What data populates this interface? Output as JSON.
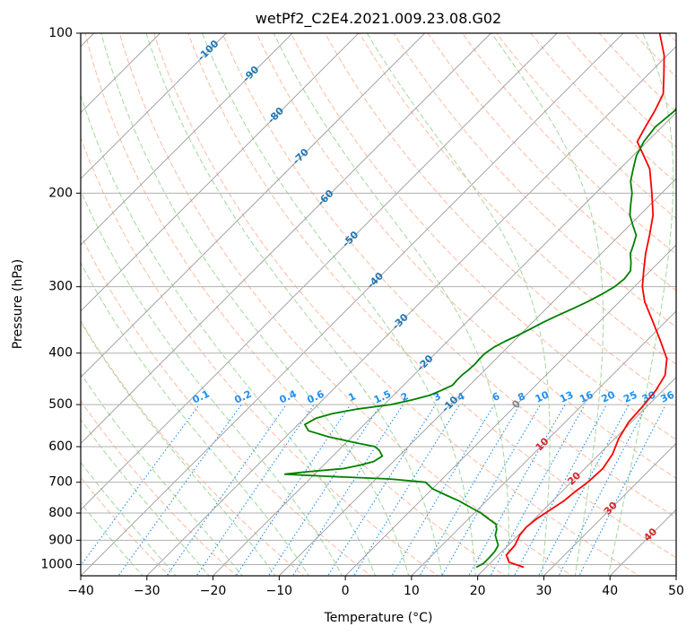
{
  "chart_data": {
    "type": "line",
    "subtype": "skew-t log-p diagram",
    "title": "wetPf2_C2E4.2021.009.23.08.G02",
    "xlabel": "Temperature (°C)",
    "ylabel": "Pressure (hPa)",
    "xlim": [
      -40,
      50
    ],
    "ylim_pressure": [
      1050,
      100
    ],
    "x_ticks": [
      -40,
      -30,
      -20,
      -10,
      0,
      10,
      20,
      30,
      40,
      50
    ],
    "x_tick_labels": [
      "−40",
      "−30",
      "−20",
      "−10",
      "0",
      "10",
      "20",
      "30",
      "40",
      "50"
    ],
    "y_ticks": [
      1000,
      900,
      800,
      700,
      600,
      500,
      400,
      300,
      200,
      100
    ],
    "y_tick_labels": [
      "1000",
      "900",
      "800",
      "700",
      "600",
      "500",
      "400",
      "300",
      "200",
      "100"
    ],
    "colors": {
      "temperature": "#ff0000",
      "dewpoint": "#008000",
      "grid": "#b0b0b0",
      "isotherm": "#9a9a9a",
      "dry_adiabat": "#fcbba1",
      "moist_adiabat": "#a1d99b",
      "mixing_ratio": "#1f8ff0",
      "freezing_label": "#888888",
      "isotherm_label_neg": "#1f77b4",
      "isotherm_label_pos": "#d62728"
    },
    "series": [
      {
        "name": "Temperature",
        "pressure": [
          1012,
          990,
          960,
          920,
          880,
          850,
          820,
          790,
          760,
          730,
          700,
          660,
          620,
          580,
          540,
          500,
          470,
          440,
          410,
          380,
          350,
          320,
          300,
          280,
          260,
          240,
          220,
          200,
          180,
          160,
          150,
          140,
          130,
          120,
          110,
          100
        ],
        "values": [
          25.7,
          22.7,
          21.2,
          21.0,
          20.2,
          20.0,
          20.3,
          21.0,
          21.7,
          22.0,
          22.5,
          22.7,
          22.0,
          20.6,
          19.6,
          19.3,
          18.9,
          18.0,
          15.8,
          12.2,
          8.2,
          3.8,
          1.2,
          -1.0,
          -3.3,
          -5.5,
          -8.0,
          -11.5,
          -15.5,
          -21.5,
          -22.5,
          -23.5,
          -24.8,
          -27.5,
          -30.5,
          -34.5
        ]
      },
      {
        "name": "Dewpoint",
        "pressure": [
          1012,
          995,
          970,
          945,
          920,
          900,
          880,
          860,
          840,
          820,
          800,
          780,
          760,
          740,
          720,
          700,
          690,
          682,
          676,
          670,
          660,
          650,
          640,
          625,
          610,
          600,
          590,
          575,
          560,
          545,
          530,
          520,
          510,
          500,
          490,
          480,
          470,
          460,
          450,
          440,
          430,
          420,
          410,
          400,
          390,
          380,
          370,
          360,
          350,
          340,
          330,
          320,
          310,
          300,
          290,
          280,
          270,
          260,
          250,
          240,
          230,
          220,
          210,
          200,
          190,
          180,
          170,
          160,
          150,
          140,
          130,
          120,
          110,
          100
        ],
        "values": [
          18.5,
          19.0,
          19.0,
          18.9,
          18.5,
          17.5,
          16.5,
          15.9,
          15.0,
          13.0,
          11.0,
          8.5,
          6.0,
          3.0,
          0.0,
          -2.0,
          -8.0,
          -18.0,
          -24.5,
          -22.0,
          -16.5,
          -14.5,
          -13.0,
          -12.5,
          -13.8,
          -15.0,
          -18.5,
          -23.5,
          -27.5,
          -29.0,
          -28.2,
          -26.5,
          -23.5,
          -19.0,
          -16.5,
          -14.5,
          -13.5,
          -12.6,
          -12.7,
          -12.7,
          -12.5,
          -12.4,
          -12.5,
          -12.5,
          -12.1,
          -11.3,
          -10.2,
          -9.3,
          -8.4,
          -7.3,
          -6.0,
          -4.8,
          -3.8,
          -3.0,
          -2.7,
          -3.0,
          -4.2,
          -5.6,
          -6.5,
          -7.5,
          -9.5,
          -11.5,
          -13.0,
          -14.5,
          -16.5,
          -18.0,
          -19.5,
          -20.5,
          -21.0,
          -20.5,
          -21.5,
          -24.0,
          -25.0,
          -25.2
        ]
      }
    ],
    "isotherm_labels": [
      -100,
      -90,
      -80,
      -70,
      -60,
      -50,
      -40,
      -30,
      -20,
      -10,
      0,
      10,
      20,
      30,
      40
    ],
    "mixing_ratio_labels": [
      "0.1",
      "0.2",
      "0.4",
      "0.6",
      "1",
      "1.5",
      "2",
      "3",
      "4",
      "6",
      "8",
      "10",
      "13",
      "16",
      "20",
      "25",
      "30",
      "36"
    ],
    "mixing_ratio_values": [
      0.1,
      0.2,
      0.4,
      0.6,
      1,
      1.5,
      2,
      3,
      4,
      6,
      8,
      10,
      13,
      16,
      20,
      25,
      30,
      36
    ]
  }
}
